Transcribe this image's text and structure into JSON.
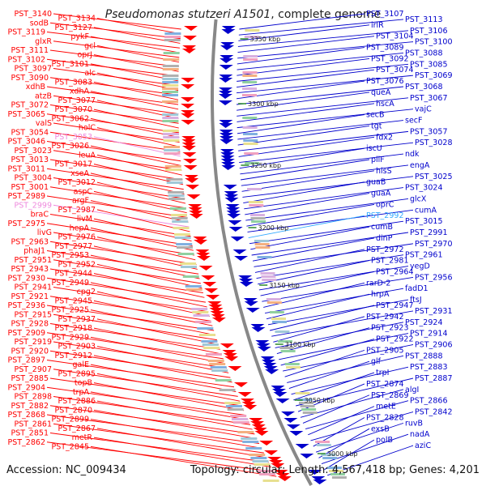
{
  "title": {
    "organism": "Pseudomonas stutzeri A1501",
    "suffix": ", complete genome"
  },
  "footer": {
    "accession_label": "Accession:",
    "accession": "NC_009434",
    "topology_label": "Topology:",
    "topology": "circular",
    "length_label": "Length:",
    "length": "4,567,418 bp",
    "genes_label": "Genes:",
    "genes": "4,201"
  },
  "colors": {
    "forward": "#ff0000",
    "reverse": "#0000cc",
    "highlight_left": "#ee88dd",
    "highlight_right": "#33aaff",
    "backbone": "#888888"
  },
  "kbp_ticks": [
    "3350 kbp",
    "3300 kbp",
    "3250 kbp",
    "3200 kbp",
    "3150 kbp",
    "3100 kbp",
    "3050 kbp",
    "3000 kbp"
  ],
  "left_labels": [
    "PST_3140",
    "PST_3134",
    "sodB",
    "PST_3127",
    "PST_3119",
    "pykF",
    "glxR",
    "gcl",
    "PST_3111",
    "oprJ",
    "PST_3102",
    "PST_3101",
    "PST_3097",
    "alc",
    "PST_3090",
    "PST_3083",
    "xdhB",
    "xdhA",
    "atzB",
    "PST_3077",
    "PST_3072",
    "PST_3070",
    "PST_3065",
    "PST_3062",
    "valS",
    "holC",
    "PST_3054",
    "PST_3053",
    "PST_3046",
    "PST_3026",
    "PST_3023",
    "leuA",
    "PST_3013",
    "PST_3017",
    "PST_3011",
    "xseA",
    "PST_3004",
    "PST_3012",
    "PST_3001",
    "aspC",
    "PST_2989",
    "argF",
    "PST_2999",
    "PST_2987",
    "braC",
    "livM",
    "PST_2975",
    "hepA",
    "livG",
    "PST_2976",
    "PST_2963",
    "PST_2977",
    "phaJ1",
    "PST_2953",
    "PST_2951",
    "PST_2952",
    "PST_2943",
    "PST_2944",
    "PST_2930",
    "PST_2949",
    "PST_2941",
    "cpg2",
    "PST_2921",
    "PST_2945",
    "PST_2936",
    "PST_2925",
    "PST_2915",
    "PST_2937",
    "PST_2928",
    "PST_2918",
    "PST_2909",
    "PST_2929",
    "PST_2919",
    "PST_2903",
    "PST_2920",
    "PST_2912",
    "PST_2897",
    "galE",
    "PST_2907",
    "PST_2895",
    "PST_2885",
    "topB",
    "PST_2904",
    "trpA",
    "PST_2898",
    "PST_2886",
    "PST_2882",
    "PST_2870",
    "PST_2868",
    "PST_2899",
    "PST_2861",
    "PST_2867",
    "PST_2851",
    "metR",
    "PST_2862",
    "PST_2845"
  ],
  "right_labels": [
    "PST_3107",
    "PST_3113",
    "irlR",
    "PST_3106",
    "PST_3104",
    "PST_3100",
    "PST_3089",
    "PST_3088",
    "PST_3092",
    "PST_3085",
    "PST_3074",
    "PST_3069",
    "PST_3076",
    "PST_3068",
    "queA",
    "PST_3067",
    "hscA",
    "vajC",
    "secB",
    "secF",
    "tgt",
    "PST_3057",
    "fdx2",
    "PST_3028",
    "iscU",
    "ndk",
    "pilF",
    "engA",
    "hisS",
    "PST_3025",
    "guaB",
    "PST_3024",
    "guaA",
    "glcX",
    "oprC",
    "cumA",
    "PST_2992",
    "PST_3015",
    "cumB",
    "PST_2991",
    "dinP",
    "PST_2970",
    "PST_2972",
    "PST_2961",
    "PST_2981",
    "yegD",
    "PST_2964",
    "PST_2956",
    "rarD-2",
    "fadD1",
    "hrpA",
    "ftsJ",
    "PST_2947",
    "PST_2931",
    "PST_2942",
    "PST_2924",
    "PST_2923",
    "PST_2914",
    "PST_2922",
    "PST_2906",
    "PST_2905",
    "PST_2888",
    "glf",
    "PST_2883",
    "trpI",
    "PST_2887",
    "PST_2874",
    "algI",
    "PST_2869",
    "PST_2866",
    "metE",
    "PST_2842",
    "PST_2828",
    "ruvB",
    "exsB",
    "nadA",
    "polB",
    "aziC"
  ]
}
